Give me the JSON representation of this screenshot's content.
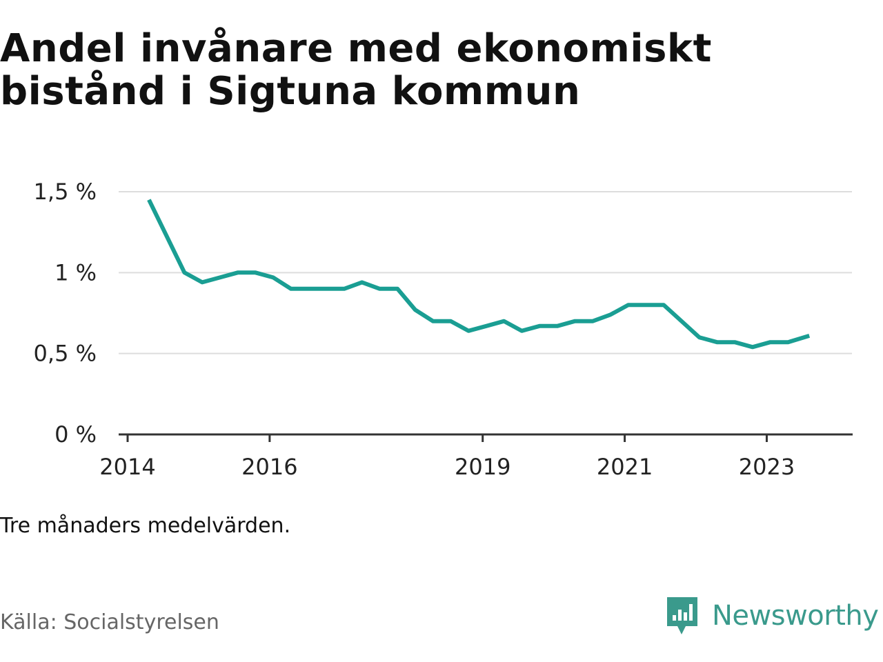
{
  "title": "Andel invånare med ekonomiskt bistånd i Sigtuna kommun",
  "note": "Tre månaders medelvärden.",
  "source": "Källa: Socialstyrelsen",
  "brand": {
    "name": "Newsworthy",
    "icon": "newsworthy-logo-icon",
    "color": "#3a9a8c"
  },
  "chart_data": {
    "type": "line",
    "title": "Andel invånare med ekonomiskt bistånd i Sigtuna kommun",
    "xlabel": "",
    "ylabel": "",
    "x_ticks": [
      {
        "label": "2014",
        "value": 2014.0
      },
      {
        "label": "2016",
        "value": 2016.0
      },
      {
        "label": "2019",
        "value": 2019.0
      },
      {
        "label": "2021",
        "value": 2021.0
      },
      {
        "label": "2023",
        "value": 2023.0
      }
    ],
    "y_ticks": [
      {
        "label": "0 %",
        "value": 0
      },
      {
        "label": "0,5 %",
        "value": 0.5
      },
      {
        "label": "1 %",
        "value": 1.0
      },
      {
        "label": "1,5 %",
        "value": 1.5
      }
    ],
    "xlim": [
      2014,
      2024.2
    ],
    "ylim": [
      0,
      1.5
    ],
    "grid": true,
    "line_color": "#1a9e93",
    "series": [
      {
        "x": [
          2014.3,
          2014.8,
          2015.05,
          2015.3,
          2015.55,
          2015.8,
          2016.05,
          2016.3,
          2016.55,
          2016.8,
          2017.05,
          2017.3,
          2017.55,
          2017.8,
          2018.05,
          2018.3,
          2018.55,
          2018.8,
          2019.05,
          2019.3,
          2019.55,
          2019.8,
          2020.05,
          2020.3,
          2020.55,
          2020.8,
          2021.05,
          2021.3,
          2021.55,
          2021.8,
          2022.05,
          2022.3,
          2022.55,
          2022.8,
          2023.05,
          2023.3,
          2023.6
        ],
        "values": [
          1.45,
          1.0,
          0.94,
          0.97,
          1.0,
          1.0,
          0.97,
          0.9,
          0.9,
          0.9,
          0.9,
          0.94,
          0.9,
          0.9,
          0.77,
          0.7,
          0.7,
          0.64,
          0.67,
          0.7,
          0.64,
          0.67,
          0.67,
          0.7,
          0.7,
          0.74,
          0.8,
          0.8,
          0.8,
          0.7,
          0.6,
          0.57,
          0.57,
          0.54,
          0.57,
          0.57,
          0.61
        ]
      }
    ]
  }
}
